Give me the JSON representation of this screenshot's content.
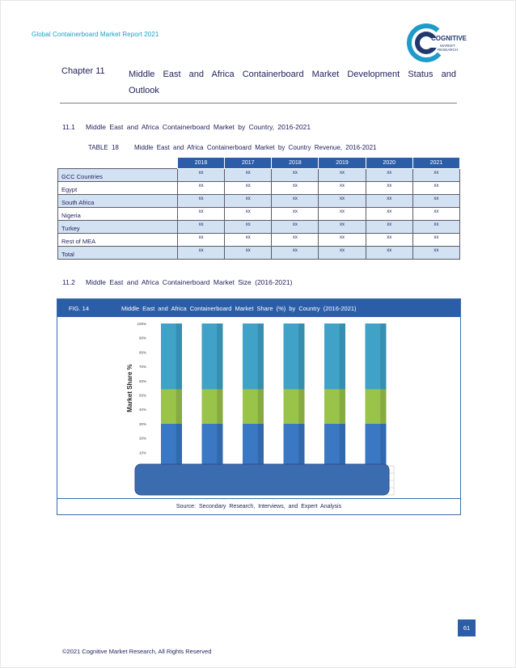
{
  "header": {
    "report_title": "Global Containerboard  Market Report 2021"
  },
  "logo": {
    "name": "COGNITIVE",
    "sub_line1": "MARKET",
    "sub_line2": "RESEARCH"
  },
  "chapter": {
    "number": "Chapter 11",
    "title": "Middle East and Africa Containerboard Market Development Status and Outlook"
  },
  "section_1": {
    "number": "11.1",
    "title": "Middle East and Africa Containerboard  Market by Country, 2016-2021"
  },
  "table": {
    "label": "TABLE 18",
    "title": "Middle East and Africa Containerboard  Market by Country Revenue, 2016-2021",
    "columns": [
      "2016",
      "2017",
      "2018",
      "2019",
      "2020",
      "2021"
    ],
    "rows": [
      {
        "country": "GCC Countries",
        "values": [
          "xx",
          "xx",
          "xx",
          "xx",
          "xx",
          "xx"
        ]
      },
      {
        "country": "Egypt",
        "values": [
          "xx",
          "xx",
          "xx",
          "xx",
          "xx",
          "xx"
        ]
      },
      {
        "country": "South Africa",
        "values": [
          "xx",
          "xx",
          "xx",
          "xx",
          "xx",
          "xx"
        ]
      },
      {
        "country": "Nigeria",
        "values": [
          "xx",
          "xx",
          "xx",
          "xx",
          "xx",
          "xx"
        ]
      },
      {
        "country": "Turkey",
        "values": [
          "xx",
          "xx",
          "xx",
          "xx",
          "xx",
          "xx"
        ]
      },
      {
        "country": "Rest of MEA",
        "values": [
          "xx",
          "xx",
          "xx",
          "xx",
          "xx",
          "xx"
        ]
      },
      {
        "country": "Total",
        "values": [
          "xx",
          "xx",
          "xx",
          "xx",
          "xx",
          "xx"
        ]
      }
    ]
  },
  "section_2": {
    "number": "11.2",
    "title": "Middle East and Africa Containerboard  Market Size (2016-2021)"
  },
  "figure": {
    "label": "FIG. 14",
    "title": "Middle East and Africa Containerboard    Market Share (%) by Country  (2016-2021)",
    "source": "Source:  Secondary Research, Interviews, and Expert Analysis"
  },
  "chart_data": {
    "type": "bar",
    "stacked": true,
    "ylabel": "Market Share %",
    "y_ticks": [
      "100%",
      "90%",
      "80%",
      "70%",
      "60%",
      "50%",
      "40%",
      "30%",
      "20%",
      "10%"
    ],
    "ylim": [
      0,
      100
    ],
    "categories": [
      "",
      "",
      "",
      "",
      "",
      ""
    ],
    "series": [
      {
        "values": [
          30,
          30,
          30,
          30,
          30,
          30
        ],
        "color": "#3a78c4"
      },
      {
        "values": [
          24,
          24,
          24,
          24,
          24,
          24
        ],
        "color": "#9ac34a"
      },
      {
        "values": [
          46,
          46,
          46,
          46,
          46,
          46
        ],
        "color": "#3fa2c6"
      }
    ],
    "grid": false
  },
  "page_number": "61",
  "footer": {
    "copyright": "©2021 Cognitive Market Research, All Rights Reserved"
  }
}
